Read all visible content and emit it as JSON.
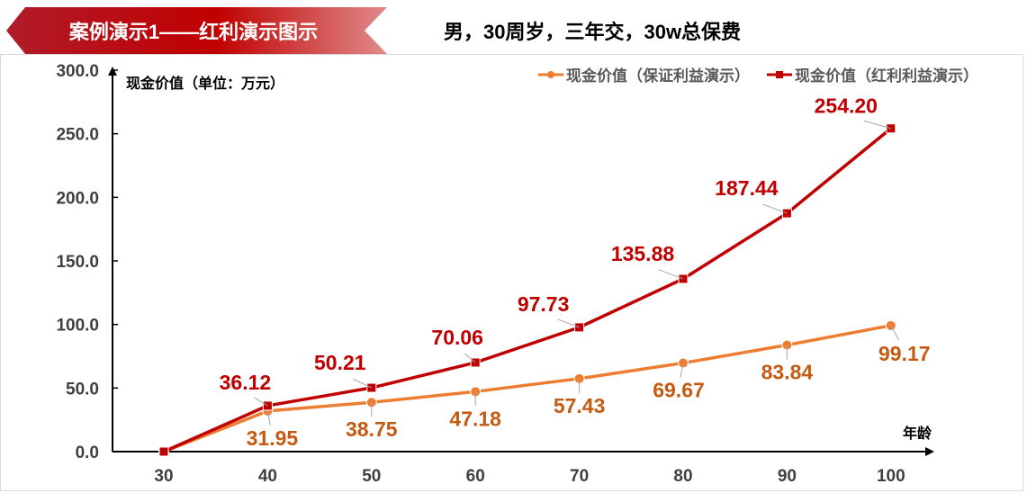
{
  "header": {
    "title": "案例演示1——红利演示图示",
    "subtitle": "男，30周岁，三年交，30w总保费"
  },
  "chart_data": {
    "type": "line",
    "ylabel": "现金价值（单位：万元）",
    "xlabel": "年龄",
    "x": [
      30,
      40,
      50,
      60,
      70,
      80,
      90,
      100
    ],
    "ylim": [
      0,
      300
    ],
    "yticks": [
      "0.0",
      "50.0",
      "100.0",
      "150.0",
      "200.0",
      "250.0",
      "300.0"
    ],
    "grid": false,
    "legend_position": "top-right",
    "series": [
      {
        "name": "现金价值（保证利益演示）",
        "color": "#ed7d31",
        "label_color": "#c55a11",
        "marker": "circle",
        "values": [
          0,
          31.95,
          38.75,
          47.18,
          57.43,
          69.67,
          83.84,
          99.17
        ],
        "labels": [
          "",
          "31.95",
          "38.75",
          "47.18",
          "57.43",
          "69.67",
          "83.84",
          "99.17"
        ]
      },
      {
        "name": "现金价值（红利利益演示）",
        "color": "#c00000",
        "label_color": "#c00000",
        "marker": "square",
        "values": [
          0,
          36.12,
          50.21,
          70.06,
          97.73,
          135.88,
          187.44,
          254.2
        ],
        "labels": [
          "",
          "36.12",
          "50.21",
          "70.06",
          "97.73",
          "135.88",
          "187.44",
          "254.20"
        ]
      }
    ]
  }
}
